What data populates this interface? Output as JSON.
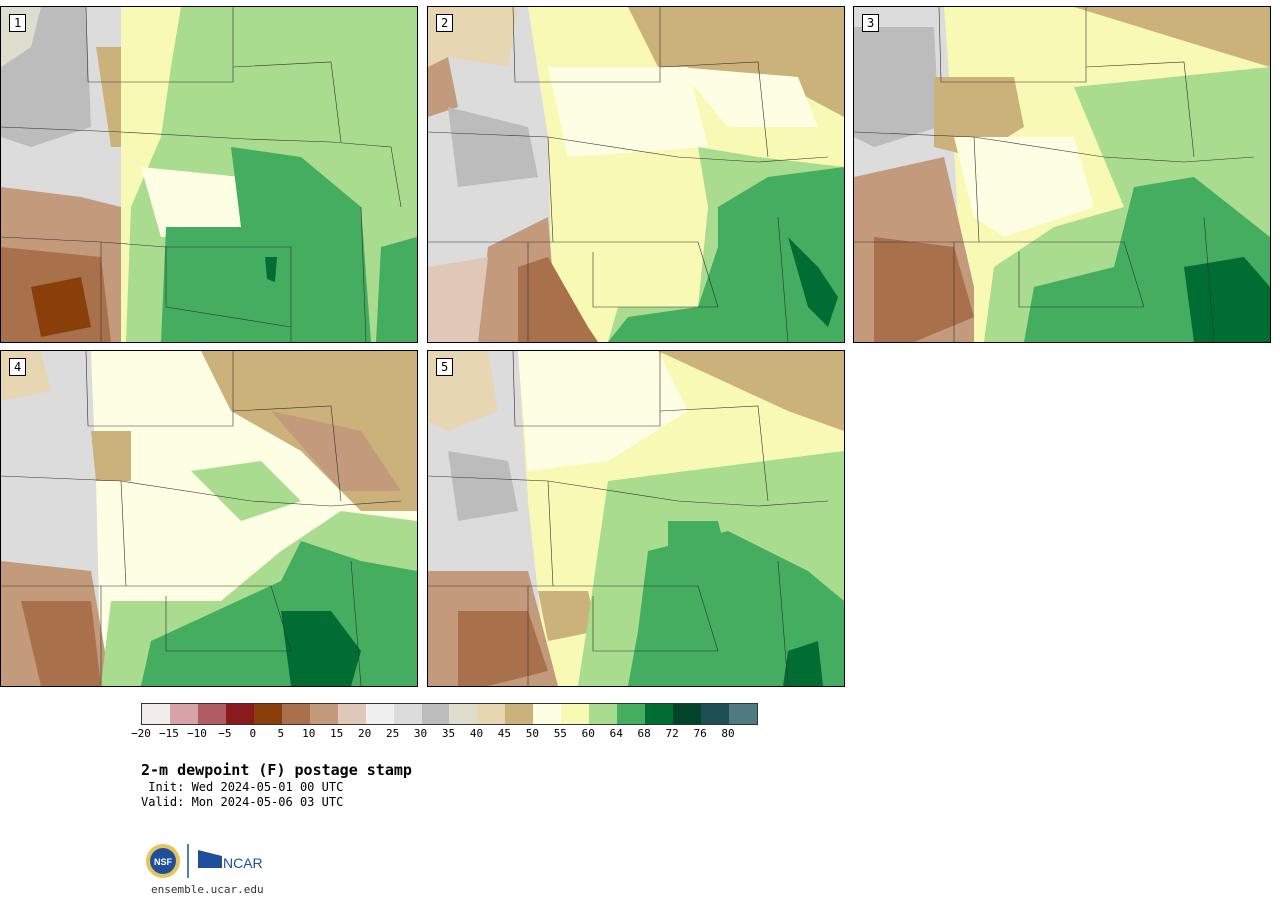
{
  "panels": [
    {
      "label": "1"
    },
    {
      "label": "2"
    },
    {
      "label": "3"
    },
    {
      "label": "4"
    },
    {
      "label": "5"
    }
  ],
  "colorbar": {
    "colors": [
      "#f3ecec",
      "#d7a3a8",
      "#b05d64",
      "#8b1a1e",
      "#8a3f0b",
      "#a8714b",
      "#c49a7c",
      "#e0c8b8",
      "#f0f0f0",
      "#dcdcdc",
      "#bcbcbc",
      "#dedecf",
      "#e6d7b2",
      "#cbb27a",
      "#fefee4",
      "#f7f9b5",
      "#a9dc8e",
      "#45ad5f",
      "#006d32",
      "#00452a",
      "#1e4f55",
      "#507a80"
    ],
    "ticks": [
      "−20",
      "−15",
      "−10",
      "−5",
      "0",
      "5",
      "10",
      "15",
      "20",
      "25",
      "30",
      "35",
      "40",
      "45",
      "50",
      "55",
      "60",
      "64",
      "68",
      "72",
      "76",
      "80"
    ]
  },
  "title": "2-m dewpoint (F) postage stamp",
  "init": " Init: Wed 2024-05-01 00 UTC",
  "valid": "Valid: Mon 2024-05-06 03 UTC",
  "logos": {
    "nsf": "NSF",
    "ncar": "NCAR"
  },
  "website": "ensemble.ucar.edu"
}
